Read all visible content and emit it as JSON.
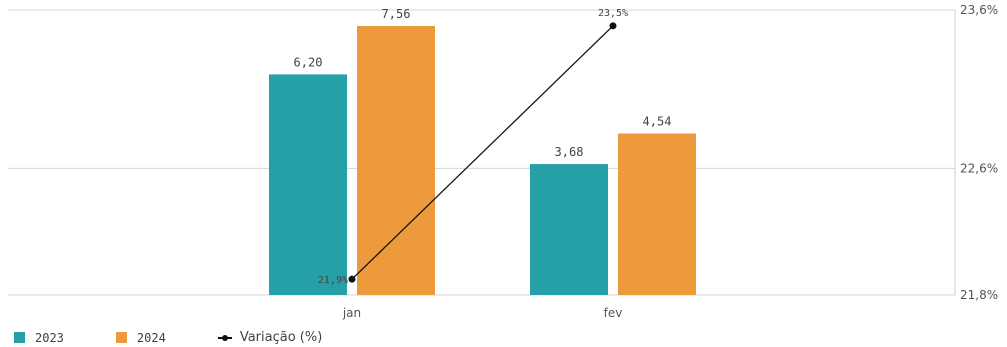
{
  "chart_data": {
    "type": "bar",
    "categories": [
      "jan",
      "fev"
    ],
    "series": [
      {
        "name": "2023",
        "values": [
          6.2,
          3.68
        ],
        "labels": [
          "6,20",
          "3,68"
        ],
        "color": "#26a0a7"
      },
      {
        "name": "2024",
        "values": [
          7.56,
          4.54
        ],
        "labels": [
          "7,56",
          "4,54"
        ],
        "color": "#ec9a3c"
      }
    ],
    "line_series": {
      "name": "Variação (%)",
      "values": [
        21.9,
        23.5
      ],
      "labels": [
        "21,9%",
        "23,5%"
      ],
      "color": "#111111"
    },
    "y_right_ticks": [
      {
        "value": 21.8,
        "label": "21,8%"
      },
      {
        "value": 22.6,
        "label": "22,6%"
      },
      {
        "value": 23.6,
        "label": "23,6%"
      }
    ],
    "bar_ylim": [
      0,
      7.56
    ],
    "line_ylim": [
      21.8,
      23.6
    ],
    "grid": true,
    "legend": "bottom-left"
  }
}
